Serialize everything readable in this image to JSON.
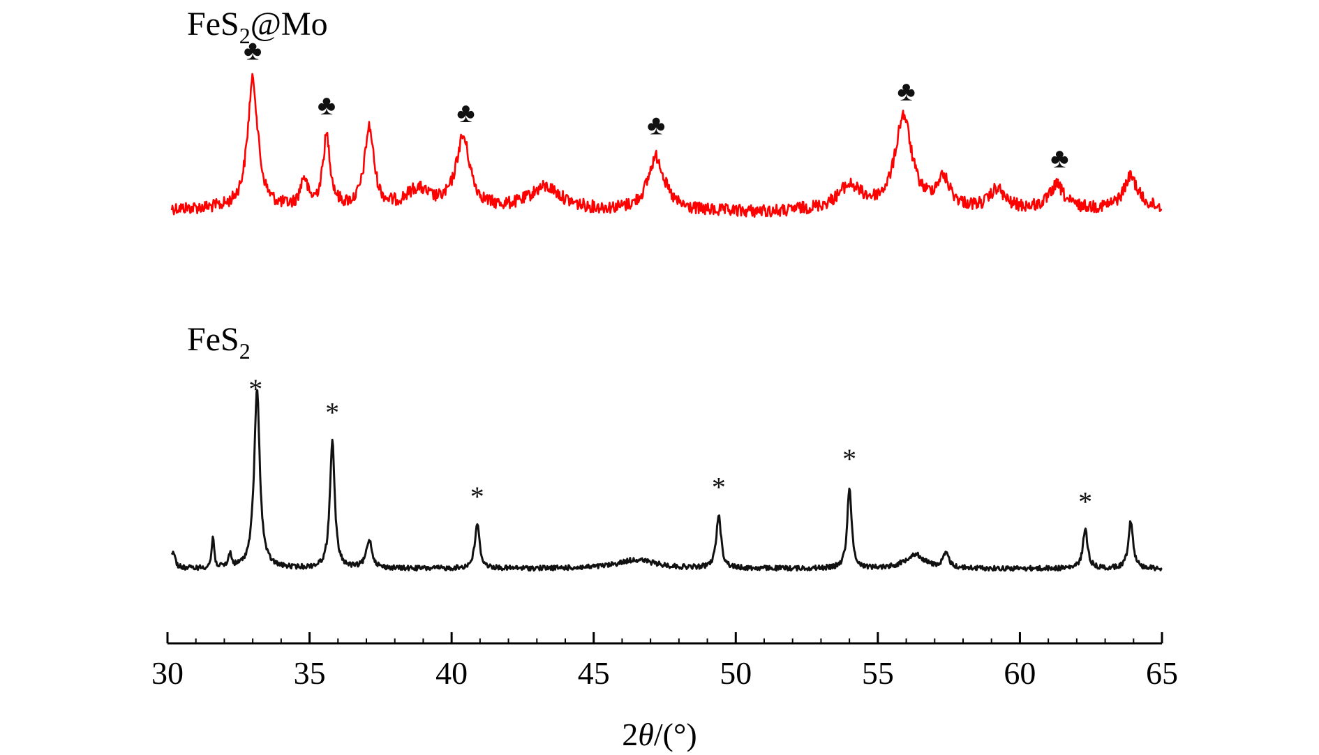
{
  "chart_data": {
    "type": "line",
    "xlabel_prefix": "2",
    "xlabel_theta": "θ",
    "xlabel_suffix": "/(°)",
    "xlim": [
      30,
      65
    ],
    "xticks": [
      30,
      35,
      40,
      45,
      50,
      55,
      60,
      65
    ],
    "tick_labels": [
      "30",
      "35",
      "40",
      "45",
      "50",
      "55",
      "60",
      "65"
    ],
    "y_axis_shown": false,
    "grid": false,
    "series": [
      {
        "label_main": "FeS",
        "label_sub": "2",
        "label_tail": "@Mo",
        "color": "#ff0000",
        "marker": "♣",
        "marker_positions": [
          33.0,
          35.6,
          40.5,
          47.2,
          56.0,
          61.4
        ],
        "baseline": 0.0,
        "peaks": [
          {
            "x": 33.0,
            "h": 1.0,
            "w": 0.22
          },
          {
            "x": 34.8,
            "h": 0.22,
            "w": 0.15
          },
          {
            "x": 35.6,
            "h": 0.55,
            "w": 0.16
          },
          {
            "x": 37.1,
            "h": 0.62,
            "w": 0.2
          },
          {
            "x": 38.8,
            "h": 0.15,
            "w": 0.5
          },
          {
            "x": 40.4,
            "h": 0.55,
            "w": 0.3
          },
          {
            "x": 43.3,
            "h": 0.18,
            "w": 0.7
          },
          {
            "x": 47.2,
            "h": 0.42,
            "w": 0.35
          },
          {
            "x": 54.0,
            "h": 0.18,
            "w": 0.5
          },
          {
            "x": 55.9,
            "h": 0.72,
            "w": 0.35
          },
          {
            "x": 57.3,
            "h": 0.22,
            "w": 0.3
          },
          {
            "x": 59.2,
            "h": 0.15,
            "w": 0.3
          },
          {
            "x": 61.3,
            "h": 0.18,
            "w": 0.3
          },
          {
            "x": 63.9,
            "h": 0.25,
            "w": 0.3
          }
        ]
      },
      {
        "label_main": "FeS",
        "label_sub": "2",
        "label_tail": "",
        "color": "#111111",
        "marker": "*",
        "marker_positions": [
          33.1,
          35.8,
          40.9,
          49.4,
          54.0,
          62.3
        ],
        "baseline": 0.0,
        "peaks": [
          {
            "x": 30.2,
            "h": 0.1,
            "w": 0.08
          },
          {
            "x": 31.6,
            "h": 0.18,
            "w": 0.05
          },
          {
            "x": 32.2,
            "h": 0.08,
            "w": 0.06
          },
          {
            "x": 33.15,
            "h": 1.0,
            "w": 0.12
          },
          {
            "x": 35.8,
            "h": 0.72,
            "w": 0.1
          },
          {
            "x": 37.1,
            "h": 0.16,
            "w": 0.12
          },
          {
            "x": 40.9,
            "h": 0.25,
            "w": 0.1
          },
          {
            "x": 46.5,
            "h": 0.05,
            "w": 0.8
          },
          {
            "x": 49.4,
            "h": 0.3,
            "w": 0.1
          },
          {
            "x": 54.0,
            "h": 0.46,
            "w": 0.09
          },
          {
            "x": 56.3,
            "h": 0.08,
            "w": 0.4
          },
          {
            "x": 57.4,
            "h": 0.08,
            "w": 0.12
          },
          {
            "x": 62.3,
            "h": 0.22,
            "w": 0.1
          },
          {
            "x": 63.9,
            "h": 0.27,
            "w": 0.1
          }
        ]
      }
    ]
  }
}
